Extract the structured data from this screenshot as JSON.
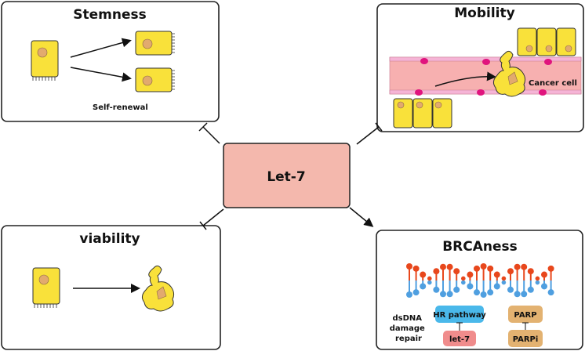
{
  "center": {
    "label": "Let-7",
    "color": "#f4b8ad"
  },
  "panels": {
    "stemness": {
      "title": "Stemness",
      "caption": "Self-renewal"
    },
    "mobility": {
      "title": "Mobility",
      "caption": "Cancer cell"
    },
    "viability": {
      "title": "viability"
    },
    "brcaness": {
      "title": "BRCAness",
      "repair_label": [
        "dsDNA",
        "damage",
        "repair"
      ],
      "hr": "HR pathway",
      "let7": "let-7",
      "parp": "PARP",
      "parpi": "PARPi"
    }
  },
  "relations": [
    {
      "from": "Let-7",
      "to": "Stemness",
      "type": "inhibits"
    },
    {
      "from": "Let-7",
      "to": "Mobility",
      "type": "inhibits"
    },
    {
      "from": "Let-7",
      "to": "viability",
      "type": "inhibits"
    },
    {
      "from": "Let-7",
      "to": "BRCAness",
      "type": "promotes"
    }
  ],
  "colors": {
    "cell": "#f9e13a",
    "vessel": "#f7b0b0",
    "hr": "#4ab8ea",
    "let7_box": "#f08c8c",
    "parp": "#e3b271",
    "dna_red": "#e8471c",
    "dna_blue": "#4f9fe0"
  }
}
